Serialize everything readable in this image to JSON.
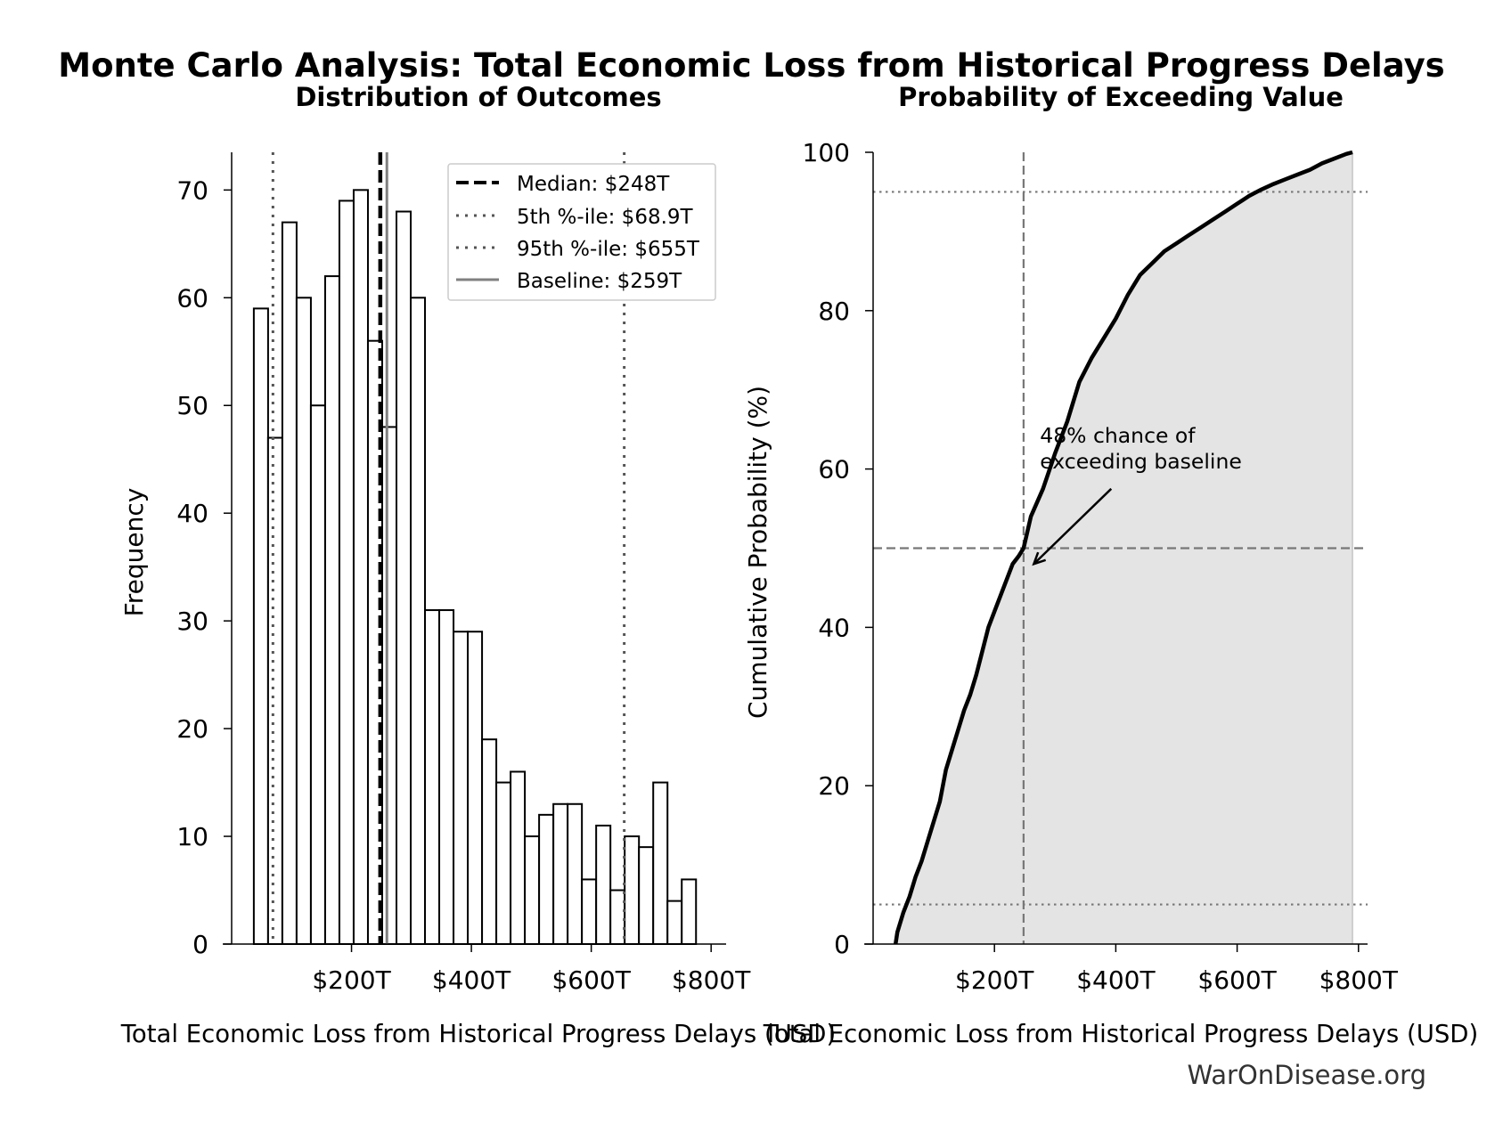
{
  "figure": {
    "title": "Monte Carlo Analysis: Total Economic Loss from Historical Progress Delays",
    "footer": "WarOnDisease.org"
  },
  "chart_data": [
    {
      "type": "bar",
      "subtype": "histogram",
      "title": "Distribution of Outcomes",
      "xlabel": "Total Economic Loss from Historical Progress Delays (USD)",
      "ylabel": "Frequency",
      "xlim": [
        0,
        825
      ],
      "ylim": [
        0,
        73.5
      ],
      "x_ticks": [
        200,
        400,
        600,
        800
      ],
      "x_tick_labels": [
        "$200T",
        "$400T",
        "$600T",
        "$800T"
      ],
      "y_ticks": [
        0,
        10,
        20,
        30,
        40,
        50,
        60,
        70
      ],
      "y_tick_labels": [
        "0",
        "10",
        "20",
        "30",
        "40",
        "50",
        "60",
        "70"
      ],
      "bin_start": 37,
      "bin_width": 23.8,
      "values": [
        59,
        47,
        67,
        60,
        50,
        62,
        69,
        70,
        56,
        48,
        68,
        60,
        31,
        31,
        29,
        29,
        19,
        15,
        16,
        10,
        12,
        13,
        13,
        6,
        11,
        5,
        10,
        9,
        15,
        4,
        6
      ],
      "reference_lines": [
        {
          "name": "median",
          "x": 248,
          "style": "dashed",
          "color": "#000000"
        },
        {
          "name": "p5",
          "x": 68.9,
          "style": "dotted",
          "color": "#555555"
        },
        {
          "name": "p95",
          "x": 655,
          "style": "dotted",
          "color": "#555555"
        },
        {
          "name": "baseline",
          "x": 259,
          "style": "solid",
          "color": "#808080"
        }
      ],
      "legend": {
        "position": "top-right",
        "entries": [
          "Median: $248T",
          "5th %-ile: $68.9T",
          "95th %-ile: $655T",
          "Baseline: $259T"
        ]
      }
    },
    {
      "type": "area",
      "subtype": "cumulative-distribution",
      "title": "Probability of Exceeding Value",
      "xlabel": "Total Economic Loss from Historical Progress Delays (USD)",
      "ylabel": "Cumulative Probability (%)",
      "xlim": [
        0,
        815
      ],
      "ylim": [
        0,
        100
      ],
      "x_ticks": [
        200,
        400,
        600,
        800
      ],
      "x_tick_labels": [
        "$200T",
        "$400T",
        "$600T",
        "$800T"
      ],
      "y_ticks": [
        0,
        20,
        40,
        60,
        80,
        100
      ],
      "y_tick_labels": [
        "0",
        "20",
        "40",
        "60",
        "80",
        "100"
      ],
      "x": [
        37,
        40,
        50,
        60,
        70,
        80,
        90,
        100,
        110,
        120,
        130,
        140,
        150,
        160,
        170,
        180,
        190,
        200,
        210,
        220,
        230,
        240,
        248,
        260,
        280,
        300,
        320,
        340,
        360,
        380,
        400,
        420,
        440,
        460,
        480,
        500,
        520,
        540,
        560,
        580,
        600,
        620,
        640,
        660,
        680,
        700,
        720,
        740,
        760,
        780,
        790
      ],
      "y": [
        0,
        1.5,
        4,
        6,
        8.5,
        10.5,
        13,
        15.5,
        18,
        22,
        24.5,
        27,
        29.5,
        31.5,
        34,
        37,
        40,
        42,
        44,
        46,
        48,
        49,
        50,
        54,
        57.5,
        62,
        66,
        71,
        74,
        76.5,
        79,
        82,
        84.5,
        86,
        87.5,
        88.5,
        89.5,
        90.5,
        91.5,
        92.5,
        93.5,
        94.5,
        95.3,
        96,
        96.6,
        97.2,
        97.8,
        98.6,
        99.2,
        99.8,
        100
      ],
      "reference_lines": [
        {
          "name": "median-vertical",
          "axis": "x",
          "value": 248,
          "style": "dashed"
        },
        {
          "name": "median-horizontal",
          "axis": "y",
          "value": 50,
          "style": "dashed"
        },
        {
          "name": "p5-horizontal",
          "axis": "y",
          "value": 5,
          "style": "dotted"
        },
        {
          "name": "p95-horizontal",
          "axis": "y",
          "value": 95,
          "style": "dotted"
        }
      ],
      "annotation": {
        "lines": [
          "48% chance of",
          "exceeding baseline"
        ],
        "point": [
          259,
          48
        ],
        "text_at": [
          275,
          62
        ]
      }
    }
  ]
}
